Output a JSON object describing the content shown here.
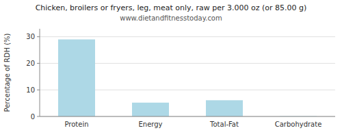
{
  "chart_data": {
    "type": "bar",
    "title": "Chicken, broilers or fryers, leg, meat only, raw per 3.000 oz (or 85.00 g)",
    "subtitle": "www.dietandfitnesstoday.com",
    "categories": [
      "Protein",
      "Energy",
      "Total-Fat",
      "Carbohydrate"
    ],
    "values": [
      29.0,
      5.2,
      6.1,
      0.1
    ],
    "color": "#add8e6",
    "ylabel": "Percentage of RDH (%)",
    "ylim": [
      0,
      33
    ],
    "yticks": [
      0,
      10,
      20,
      30
    ],
    "grid": true
  }
}
